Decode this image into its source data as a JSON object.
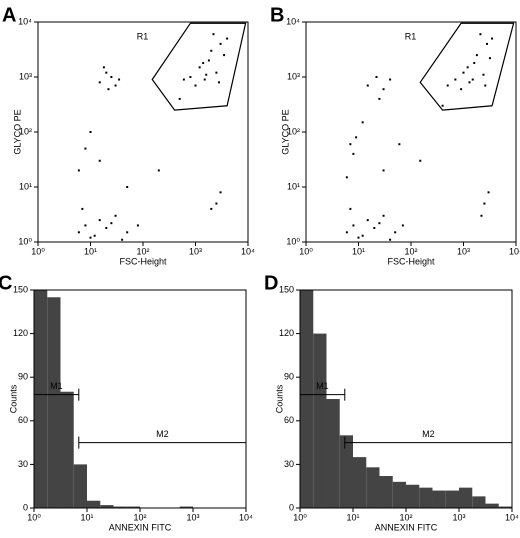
{
  "chart_data": [
    {
      "type": "scatter",
      "panel": "A",
      "xlabel": "FSC-Height",
      "ylabel": "GLYCO PE",
      "xscale": "log",
      "yscale": "log",
      "xlim": [
        1,
        10000
      ],
      "ylim": [
        1,
        10000
      ],
      "xticks": [
        {
          "value": 1,
          "label": "10⁰"
        },
        {
          "value": 10,
          "label": "10¹"
        },
        {
          "value": 100,
          "label": "10²"
        },
        {
          "value": 1000,
          "label": "10³"
        },
        {
          "value": 10000,
          "label": "10⁴"
        }
      ],
      "yticks": [
        {
          "value": 1,
          "label": "10⁰"
        },
        {
          "value": 10,
          "label": "10¹"
        },
        {
          "value": 100,
          "label": "10²"
        },
        {
          "value": 1000,
          "label": "10³"
        },
        {
          "value": 10000,
          "label": "10⁴"
        }
      ],
      "color": "#000000",
      "x": [
        1200,
        2000,
        3000,
        1500,
        2500,
        800,
        1800,
        4000,
        1000,
        2200,
        3500,
        1400,
        600,
        2800,
        1600,
        15,
        20,
        25,
        30,
        18,
        35,
        22,
        6,
        8,
        10,
        15,
        20,
        30,
        50,
        80,
        7,
        12,
        25,
        40,
        8,
        10,
        15,
        50,
        200,
        500,
        2500,
        3000,
        2000,
        6
      ],
      "y": [
        1500,
        3000,
        4000,
        900,
        1200,
        1000,
        2000,
        5000,
        700,
        6000,
        2500,
        1800,
        900,
        800,
        1100,
        800,
        1200,
        1000,
        700,
        1500,
        900,
        600,
        1.5,
        2,
        1.2,
        2.5,
        1.8,
        3,
        1.5,
        2,
        4,
        1.3,
        2.2,
        1.1,
        50,
        100,
        30,
        10,
        20,
        400,
        5,
        8,
        4,
        20
      ],
      "gate": {
        "label": "R1",
        "x": [
          150,
          800,
          9000,
          4000,
          400
        ],
        "y": [
          900,
          9500,
          9500,
          300,
          250
        ]
      }
    },
    {
      "type": "scatter",
      "panel": "B",
      "xlabel": "FSC-Height",
      "ylabel": "GLYCO PE",
      "xscale": "log",
      "yscale": "log",
      "xlim": [
        1,
        10000
      ],
      "ylim": [
        1,
        10000
      ],
      "xticks": [
        {
          "value": 1,
          "label": "10⁰"
        },
        {
          "value": 10,
          "label": "10¹"
        },
        {
          "value": 100,
          "label": "10²"
        },
        {
          "value": 1000,
          "label": "10³"
        },
        {
          "value": 10000,
          "label": "10⁴"
        }
      ],
      "yticks": [
        {
          "value": 1,
          "label": "10⁰"
        },
        {
          "value": 10,
          "label": "10¹"
        },
        {
          "value": 100,
          "label": "10²"
        },
        {
          "value": 1000,
          "label": "10³"
        },
        {
          "value": 10000,
          "label": "10⁴"
        }
      ],
      "color": "#000000",
      "x": [
        1000,
        1800,
        2800,
        1300,
        2400,
        700,
        1600,
        3500,
        900,
        2100,
        3200,
        1200,
        500,
        2600,
        1500,
        15,
        22,
        30,
        40,
        25,
        6,
        8,
        10,
        15,
        20,
        30,
        50,
        70,
        7,
        12,
        25,
        40,
        8,
        9,
        12,
        30,
        60,
        150,
        400,
        2500,
        3000,
        2200,
        6,
        7
      ],
      "y": [
        1200,
        2500,
        4000,
        800,
        1100,
        900,
        1800,
        5000,
        600,
        6000,
        2200,
        1500,
        700,
        700,
        900,
        700,
        1000,
        600,
        900,
        400,
        1.5,
        2,
        1.2,
        2.5,
        1.8,
        3,
        1.5,
        2,
        4,
        1.3,
        2.2,
        1.1,
        40,
        80,
        150,
        20,
        60,
        30,
        300,
        5,
        8,
        3,
        15,
        60
      ],
      "gate": {
        "label": "R1",
        "x": [
          150,
          900,
          9000,
          3500,
          400
        ],
        "y": [
          800,
          9500,
          9500,
          300,
          250
        ]
      }
    },
    {
      "type": "histogram",
      "panel": "C",
      "xlabel": "ANNEXIN FITC",
      "ylabel": "Counts",
      "xscale": "log",
      "xlim": [
        1,
        10000
      ],
      "ylim": [
        0,
        150
      ],
      "xticks": [
        {
          "value": 1,
          "label": "10⁰"
        },
        {
          "value": 10,
          "label": "10¹"
        },
        {
          "value": 100,
          "label": "10²"
        },
        {
          "value": 1000,
          "label": "10³"
        },
        {
          "value": 10000,
          "label": "10⁴"
        }
      ],
      "yticks": [
        0,
        30,
        60,
        90,
        120,
        150
      ],
      "color": "#444444",
      "bins": [
        1,
        1.78,
        3.16,
        5.62,
        10,
        17.8,
        31.6,
        56.2,
        100,
        178,
        316,
        562,
        1000,
        1780,
        3160,
        5620,
        10000
      ],
      "counts": [
        150,
        145,
        80,
        30,
        5,
        2,
        1,
        1,
        0,
        0,
        0,
        1,
        0,
        0,
        0,
        0
      ],
      "markers": [
        {
          "label": "M1",
          "range": [
            1,
            7
          ]
        },
        {
          "label": "M2",
          "range": [
            7,
            10000
          ]
        }
      ]
    },
    {
      "type": "histogram",
      "panel": "D",
      "xlabel": "ANNEXIN FITC",
      "ylabel": "Counts",
      "xscale": "log",
      "xlim": [
        1,
        10000
      ],
      "ylim": [
        0,
        150
      ],
      "xticks": [
        {
          "value": 1,
          "label": "10⁰"
        },
        {
          "value": 10,
          "label": "10¹"
        },
        {
          "value": 100,
          "label": "10²"
        },
        {
          "value": 1000,
          "label": "10³"
        },
        {
          "value": 10000,
          "label": "10⁴"
        }
      ],
      "yticks": [
        0,
        30,
        60,
        90,
        120,
        150
      ],
      "color": "#444444",
      "bins": [
        1,
        1.78,
        3.16,
        5.62,
        10,
        17.8,
        31.6,
        56.2,
        100,
        178,
        316,
        562,
        1000,
        1780,
        3160,
        5620,
        10000
      ],
      "counts": [
        150,
        120,
        75,
        50,
        35,
        28,
        22,
        18,
        16,
        14,
        12,
        12,
        14,
        8,
        3,
        1
      ],
      "markers": [
        {
          "label": "M1",
          "range": [
            1,
            7
          ]
        },
        {
          "label": "M2",
          "range": [
            7,
            10000
          ]
        }
      ]
    }
  ]
}
